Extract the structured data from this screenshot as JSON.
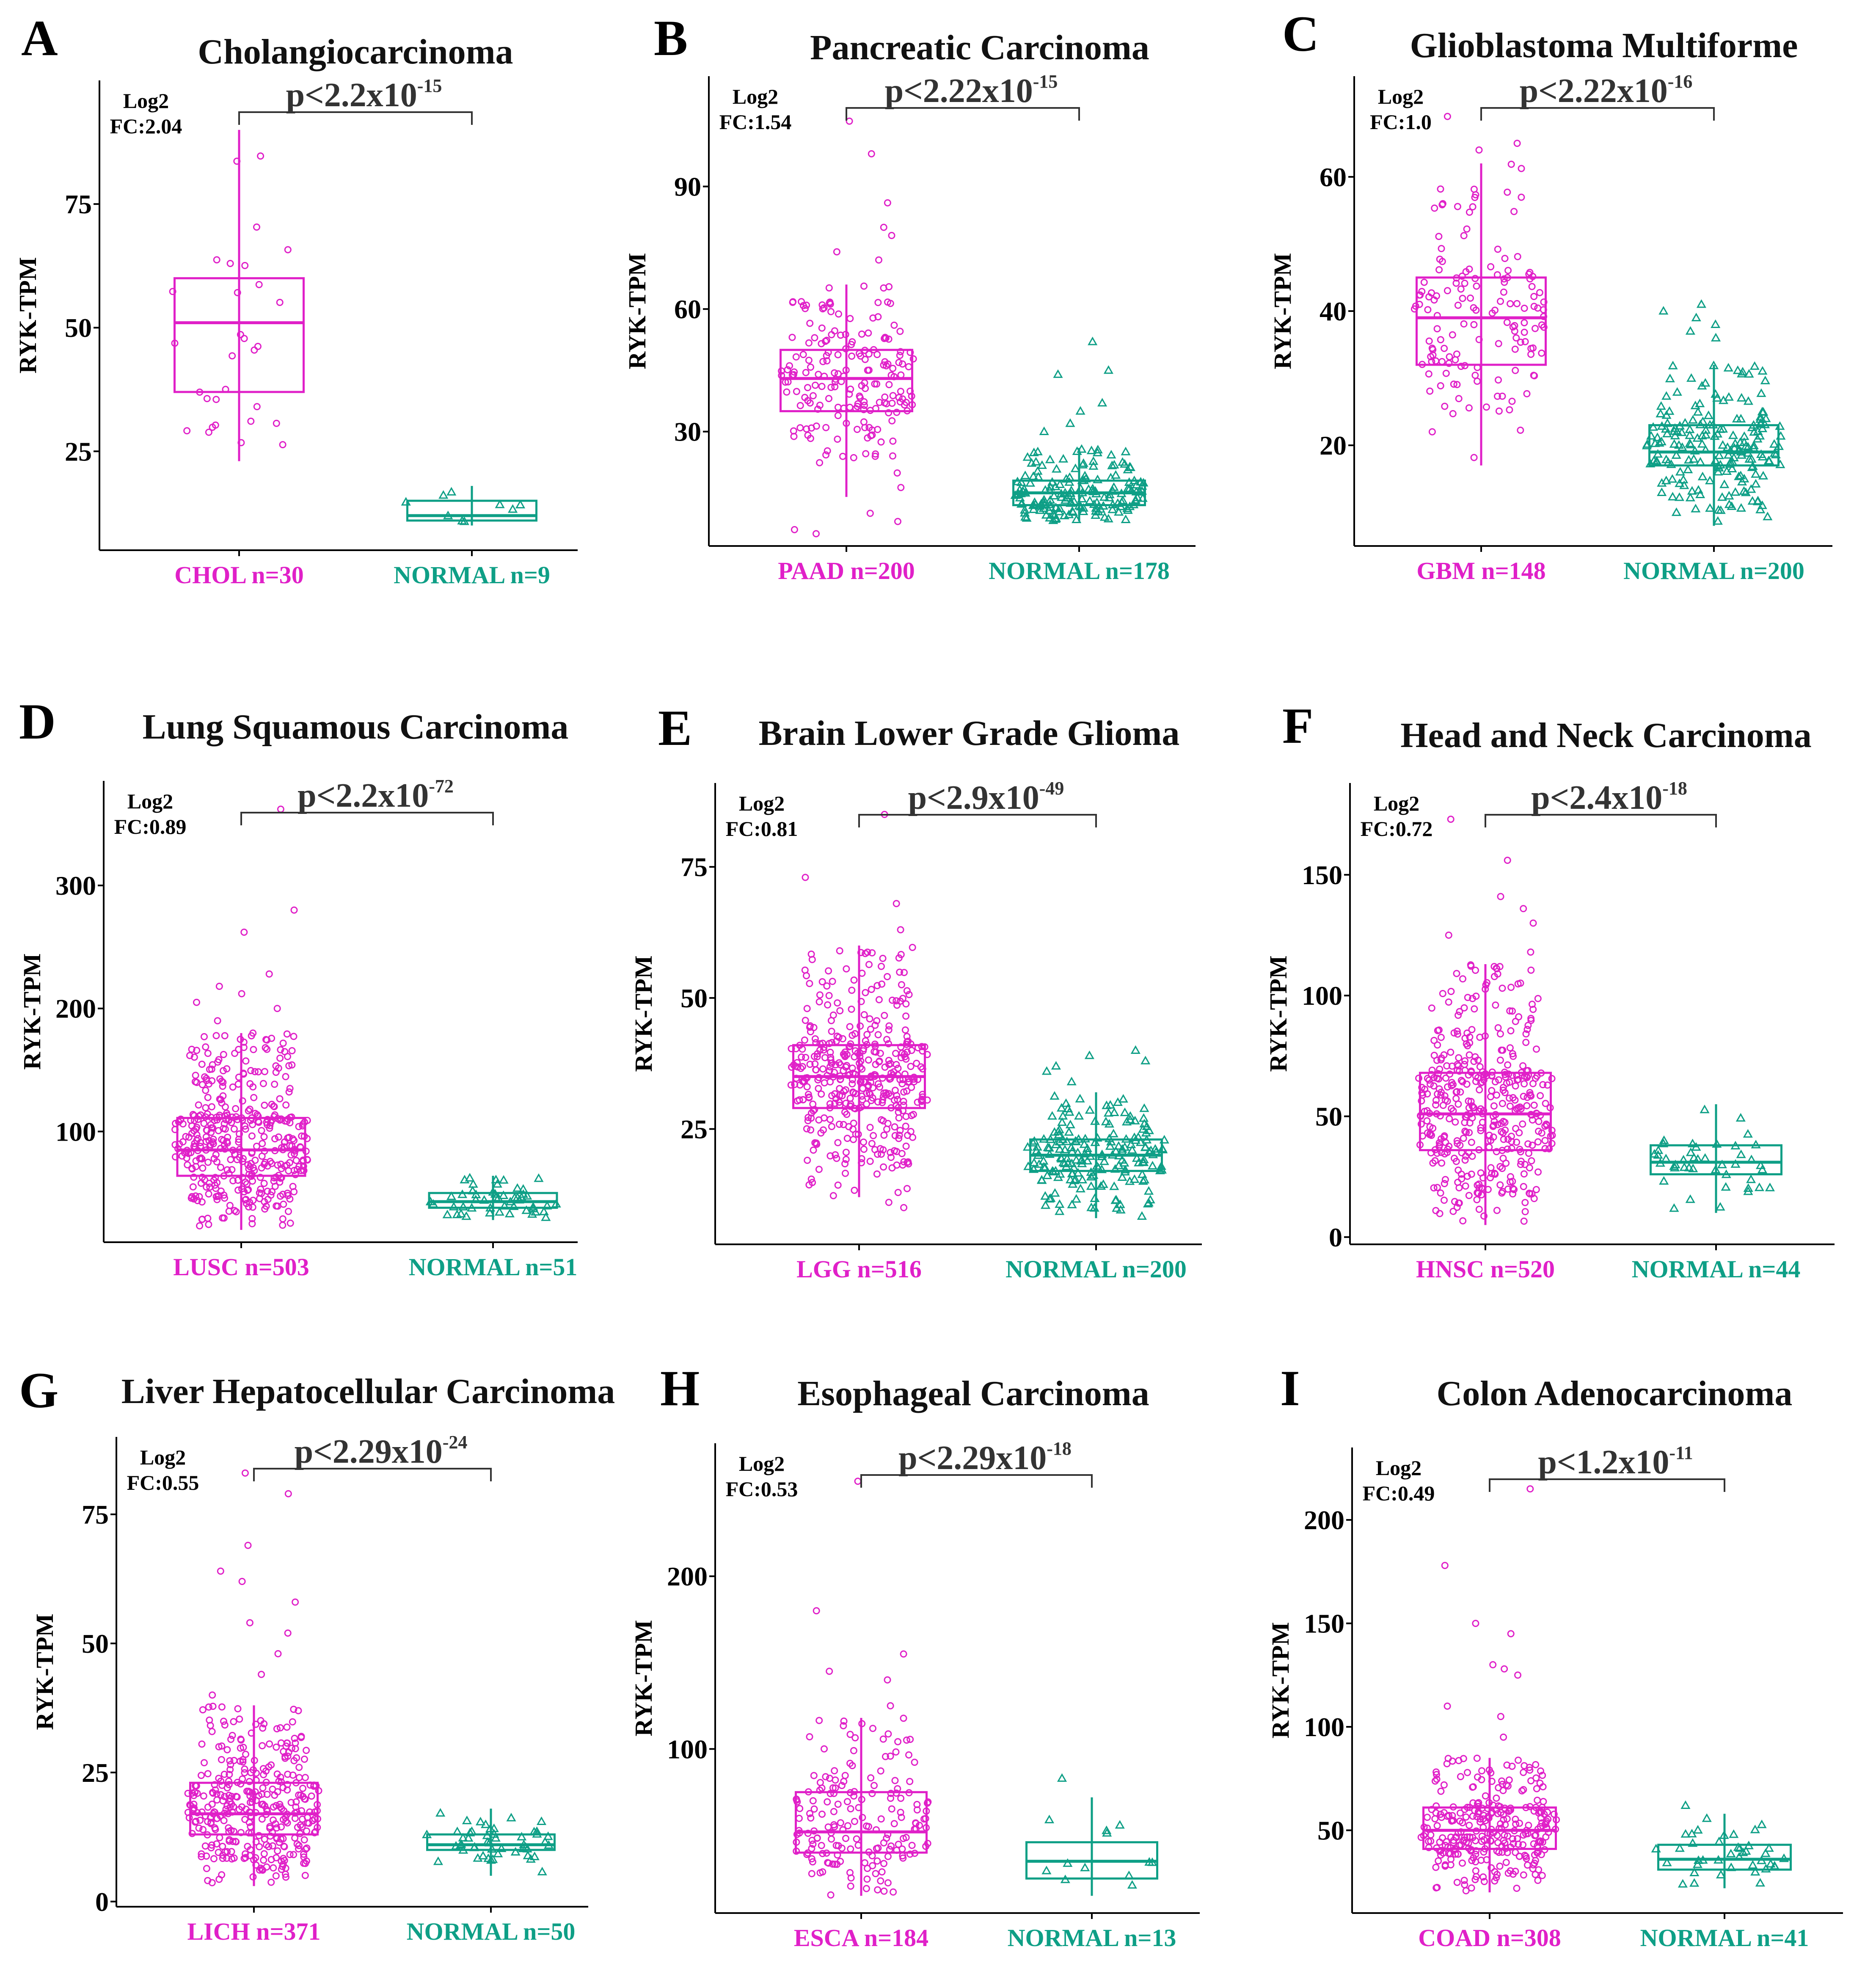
{
  "figure": {
    "y_axis_label": "RYK-TPM",
    "tumor_color": "#E020C8",
    "normal_color": "#0E9F86"
  },
  "chart_data": [
    {
      "type": "box",
      "panel": "A",
      "title": "Cholangiocarcinoma",
      "p_base": "p<2.2x10",
      "p_exp": "-15",
      "fc_line1": "Log2",
      "fc_line2": "FC:2.04",
      "ylabel": "RYK-TPM",
      "ylim": [
        5,
        100
      ],
      "yticks": [
        25,
        50,
        75
      ],
      "groups": [
        {
          "label": "CHOL n=30",
          "n": 30,
          "min": 23,
          "q1": 37,
          "median": 51,
          "q3": 60,
          "max": 90,
          "whisker_low": 23,
          "whisker_high": 90,
          "outliers": []
        },
        {
          "label": "NORMAL n=9",
          "n": 9,
          "min": 10,
          "q1": 11,
          "median": 12,
          "q3": 15,
          "max": 18,
          "whisker_low": 10,
          "whisker_high": 18,
          "outliers": []
        }
      ]
    },
    {
      "type": "box",
      "panel": "B",
      "title": "Pancreatic Carcinoma",
      "p_base": "p<2.22x10",
      "p_exp": "-15",
      "fc_line1": "Log2",
      "fc_line2": "FC:1.54",
      "ylabel": "RYK-TPM",
      "ylim": [
        2,
        117
      ],
      "yticks": [
        30,
        60,
        90
      ],
      "groups": [
        {
          "label": "PAAD n=200",
          "n": 200,
          "min": 5,
          "q1": 35,
          "median": 43,
          "q3": 50,
          "max": 106,
          "whisker_low": 14,
          "whisker_high": 66,
          "outliers": [
            5,
            6,
            8,
            10,
            72,
            74,
            78,
            80,
            86,
            98,
            106
          ]
        },
        {
          "label": "NORMAL n=178",
          "n": 178,
          "min": 7,
          "q1": 12,
          "median": 15,
          "q3": 18,
          "max": 52,
          "whisker_low": 8,
          "whisker_high": 26,
          "outliers": [
            30,
            32,
            35,
            37,
            44,
            45,
            52
          ]
        }
      ]
    },
    {
      "type": "box",
      "panel": "C",
      "title": "Glioblastoma Multiforme",
      "p_base": "p<2.22x10",
      "p_exp": "-16",
      "fc_line1": "Log2",
      "fc_line2": "FC:1.0",
      "ylabel": "RYK-TPM",
      "ylim": [
        5,
        75
      ],
      "yticks": [
        20,
        40,
        60
      ],
      "groups": [
        {
          "label": "GBM  n=148",
          "n": 148,
          "min": 17,
          "q1": 32,
          "median": 39,
          "q3": 45,
          "max": 69,
          "whisker_low": 17,
          "whisker_high": 62,
          "outliers": [
            64,
            65,
            69
          ]
        },
        {
          "label": "NORMAL n=200",
          "n": 200,
          "min": 7,
          "q1": 17,
          "median": 19,
          "q3": 23,
          "max": 41,
          "whisker_low": 8,
          "whisker_high": 32,
          "outliers": [
            36,
            37,
            38,
            39,
            40,
            41
          ]
        }
      ]
    },
    {
      "type": "box",
      "panel": "D",
      "title": "Lung Squamous Carcinoma",
      "p_base": "p<2.2x10",
      "p_exp": "-72",
      "fc_line1": "Log2",
      "fc_line2": "FC:0.89",
      "ylabel": "RYK-TPM",
      "ylim": [
        10,
        385
      ],
      "yticks": [
        100,
        200,
        300
      ],
      "groups": [
        {
          "label": "LUSC n=503",
          "n": 503,
          "min": 20,
          "q1": 64,
          "median": 85,
          "q3": 111,
          "max": 362,
          "whisker_low": 20,
          "whisker_high": 180,
          "outliers": [
            190,
            200,
            205,
            212,
            218,
            228,
            262,
            280,
            362
          ]
        },
        {
          "label": "NORMAL n=51",
          "n": 51,
          "min": 28,
          "q1": 38,
          "median": 43,
          "q3": 50,
          "max": 64,
          "whisker_low": 28,
          "whisker_high": 64,
          "outliers": []
        }
      ]
    },
    {
      "type": "box",
      "panel": "E",
      "title": "Brain Lower Grade Glioma",
      "p_base": "p<2.9x10",
      "p_exp": "-49",
      "fc_line1": "Log2",
      "fc_line2": "FC:0.81",
      "ylabel": "RYK-TPM",
      "ylim": [
        3,
        91
      ],
      "yticks": [
        25,
        50,
        75
      ],
      "groups": [
        {
          "label": "LGG n=516",
          "n": 516,
          "min": 10,
          "q1": 29,
          "median": 35,
          "q3": 41,
          "max": 85,
          "whisker_low": 12,
          "whisker_high": 60,
          "outliers": [
            10,
            11,
            63,
            68,
            73,
            85
          ]
        },
        {
          "label": "NORMAL n=200",
          "n": 200,
          "min": 8,
          "q1": 17,
          "median": 20,
          "q3": 23,
          "max": 40,
          "whisker_low": 8,
          "whisker_high": 32,
          "outliers": [
            34,
            36,
            37,
            38,
            39,
            40
          ]
        }
      ]
    },
    {
      "type": "box",
      "panel": "F",
      "title": "Head and Neck Carcinoma",
      "p_base": "p<2.4x10",
      "p_exp": "-18",
      "fc_line1": "Log2",
      "fc_line2": "FC:0.72",
      "ylabel": "RYK-TPM",
      "ylim": [
        -3,
        188
      ],
      "yticks": [
        0,
        50,
        100,
        150
      ],
      "groups": [
        {
          "label": "HNSC n=520",
          "n": 520,
          "min": 5,
          "q1": 36,
          "median": 51,
          "q3": 68,
          "max": 173,
          "whisker_low": 5,
          "whisker_high": 113,
          "outliers": [
            118,
            125,
            130,
            136,
            141,
            156,
            173
          ]
        },
        {
          "label": "NORMAL n=44",
          "n": 44,
          "min": 10,
          "q1": 26,
          "median": 31,
          "q3": 38,
          "max": 55,
          "whisker_low": 10,
          "whisker_high": 55,
          "outliers": []
        }
      ]
    },
    {
      "type": "box",
      "panel": "G",
      "title": "Liver Hepatocellular Carcinoma",
      "p_base": "p<2.29x10",
      "p_exp": "-24",
      "fc_line1": "Log2",
      "fc_line2": "FC:0.55",
      "ylabel": "RYK-TPM",
      "ylim": [
        -1,
        90
      ],
      "yticks": [
        0,
        25,
        50,
        75
      ],
      "groups": [
        {
          "label": "LICH n=371",
          "n": 371,
          "min": 3,
          "q1": 13,
          "median": 17,
          "q3": 23,
          "max": 83,
          "whisker_low": 3,
          "whisker_high": 38,
          "outliers": [
            40,
            44,
            48,
            52,
            54,
            58,
            62,
            64,
            69,
            79,
            83
          ]
        },
        {
          "label": "NORMAL n=50",
          "n": 50,
          "min": 5,
          "q1": 10,
          "median": 11,
          "q3": 13,
          "max": 18,
          "whisker_low": 5,
          "whisker_high": 18,
          "outliers": []
        }
      ]
    },
    {
      "type": "box",
      "panel": "H",
      "title": "Esophageal  Carcinoma",
      "p_base": "p<2.29x10",
      "p_exp": "-18",
      "fc_line1": "Log2",
      "fc_line2": "FC:0.53",
      "ylabel": "RYK-TPM",
      "ylim": [
        5,
        277
      ],
      "yticks": [
        100,
        200
      ],
      "groups": [
        {
          "label": "ESCA n=184",
          "n": 184,
          "min": 15,
          "q1": 40,
          "median": 52,
          "q3": 75,
          "max": 255,
          "whisker_low": 15,
          "whisker_high": 118,
          "outliers": [
            125,
            140,
            145,
            155,
            180,
            255
          ]
        },
        {
          "label": "NORMAL n=13",
          "n": 13,
          "min": 15,
          "q1": 25,
          "median": 35,
          "q3": 46,
          "max": 83,
          "whisker_low": 15,
          "whisker_high": 72,
          "outliers": [
            83
          ]
        }
      ]
    },
    {
      "type": "box",
      "panel": "I",
      "title": "Colon Adenocarcinoma",
      "p_base": "p<1.2x10",
      "p_exp": "-11",
      "fc_line1": "Log2",
      "fc_line2": "FC:0.49",
      "ylabel": "RYK-TPM",
      "ylim": [
        10,
        235
      ],
      "yticks": [
        50,
        100,
        150,
        200
      ],
      "groups": [
        {
          "label": "COAD n=308",
          "n": 308,
          "min": 20,
          "q1": 41,
          "median": 50,
          "q3": 61,
          "max": 215,
          "whisker_low": 20,
          "whisker_high": 85,
          "outliers": [
            95,
            105,
            110,
            125,
            128,
            130,
            145,
            150,
            178,
            215
          ]
        },
        {
          "label": "NORMAL n=41",
          "n": 41,
          "min": 22,
          "q1": 31,
          "median": 36,
          "q3": 43,
          "max": 62,
          "whisker_low": 22,
          "whisker_high": 58,
          "outliers": [
            62
          ]
        }
      ]
    }
  ]
}
